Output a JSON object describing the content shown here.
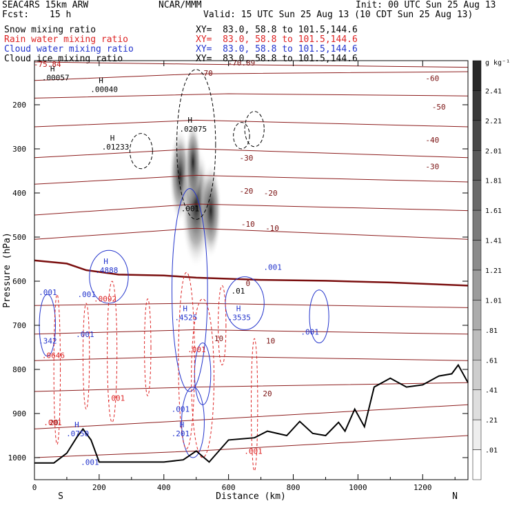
{
  "header": {
    "model": "SEAC4RS 15km ARW",
    "center": "NCAR/MMM",
    "init": "Init: 00 UTC Sun 25 Aug 13",
    "fcst_label": "Fcst:",
    "fcst_value": "15 h",
    "valid": "Valid: 15 UTC Sun 25 Aug 13 (10 CDT Sun 25 Aug 13)"
  },
  "fields": [
    {
      "label": "Snow mixing ratio",
      "xy": "XY=  83.0, 58.8 to 101.5,144.6",
      "color": "#000000"
    },
    {
      "label": "Rain water mixing ratio",
      "xy": "XY=  83.0, 58.8 to 101.5,144.6",
      "color": "#dd2222"
    },
    {
      "label": "Cloud water mixing ratio",
      "xy": "XY=  83.0, 58.8 to 101.5,144.6",
      "color": "#2233cc"
    },
    {
      "label": "Cloud ice mixing ratio",
      "xy": "XY=  83.0, 58.8 to 101.5,144.6",
      "color": "#000000"
    }
  ],
  "chart_data": {
    "type": "cross-section contour",
    "xlabel": "Distance (km)",
    "ylabel": "Pressure (hPa)",
    "x_ticks": [
      0,
      200,
      400,
      600,
      800,
      1000,
      1200
    ],
    "y_ticks": [
      200,
      300,
      400,
      500,
      600,
      700,
      800,
      900,
      1000
    ],
    "xlim": [
      0,
      1340
    ],
    "ylim": [
      100,
      1050
    ],
    "left_end": "S",
    "right_end": "N",
    "colorbar_unit": "g kg⁻¹",
    "colorbar_levels": [
      "2.41",
      "2.21",
      "2.01",
      "1.81",
      "1.61",
      "1.41",
      "1.21",
      "1.01",
      ".81",
      ".61",
      ".41",
      ".21",
      ".01"
    ],
    "temperature_labels": [
      {
        "label": "-75.84",
        "x": 40,
        "p": 108,
        "color": "#bb1111"
      },
      {
        "label": "-70.89",
        "x": 640,
        "p": 105,
        "color": "#7a1010"
      },
      {
        "label": "-70",
        "x": 530,
        "p": 128,
        "color": "#7a1010"
      },
      {
        "label": "-60",
        "x": 1230,
        "p": 140,
        "color": "#7a1010"
      },
      {
        "label": "-50",
        "x": 1250,
        "p": 205,
        "color": "#7a1010"
      },
      {
        "label": "-40",
        "x": 1230,
        "p": 280,
        "color": "#7a1010"
      },
      {
        "label": "-30",
        "x": 655,
        "p": 320,
        "color": "#7a1010"
      },
      {
        "label": "-30",
        "x": 1230,
        "p": 340,
        "color": "#7a1010"
      },
      {
        "label": "-20",
        "x": 655,
        "p": 395,
        "color": "#7a1010"
      },
      {
        "label": "-20",
        "x": 730,
        "p": 400,
        "color": "#7a1010"
      },
      {
        "label": "-10",
        "x": 660,
        "p": 470,
        "color": "#7a1010"
      },
      {
        "label": "-10",
        "x": 735,
        "p": 480,
        "color": "#7a1010"
      },
      {
        "label": "0",
        "x": 660,
        "p": 605,
        "color": "#7a1010"
      },
      {
        "label": "10",
        "x": 570,
        "p": 730,
        "color": "#7a1010"
      },
      {
        "label": "10",
        "x": 730,
        "p": 735,
        "color": "#7a1010"
      },
      {
        "label": "20",
        "x": 720,
        "p": 855,
        "color": "#7a1010"
      },
      {
        "label": "20",
        "x": 60,
        "p": 920,
        "color": "#7a1010"
      }
    ],
    "extrema_labels": [
      {
        "label": ".00057",
        "x": 70,
        "p": 138,
        "color": "#000000",
        "h": true
      },
      {
        "label": ".00040",
        "x": 220,
        "p": 165,
        "color": "#000000",
        "h": true
      },
      {
        "label": ".02075",
        "x": 495,
        "p": 255,
        "color": "#000000",
        "h": true
      },
      {
        "label": ".01233",
        "x": 255,
        "p": 295,
        "color": "#000000",
        "h": true
      },
      {
        "label": ".001",
        "x": 500,
        "p": 435,
        "color": "#000000",
        "h": false
      },
      {
        "label": ".4888",
        "x": 235,
        "p": 575,
        "color": "#2233cc",
        "h": true
      },
      {
        "label": ".001",
        "x": 60,
        "p": 625,
        "color": "#2233cc",
        "h": false
      },
      {
        "label": ".001",
        "x": 180,
        "p": 630,
        "color": "#2233cc",
        "h": false
      },
      {
        "label": ".0092",
        "x": 230,
        "p": 640,
        "color": "#dd2222",
        "h": false
      },
      {
        "label": ".4525",
        "x": 480,
        "p": 682,
        "color": "#2233cc",
        "h": true
      },
      {
        "label": ".3535",
        "x": 645,
        "p": 682,
        "color": "#2233cc",
        "h": true
      },
      {
        "label": ".001",
        "x": 755,
        "p": 568,
        "color": "#2233cc",
        "h": false
      },
      {
        "label": ".01",
        "x": 655,
        "p": 622,
        "color": "#000000",
        "h": false
      },
      {
        "label": ".001",
        "x": 870,
        "p": 715,
        "color": "#2233cc",
        "h": false
      },
      {
        "label": ".342",
        "x": 60,
        "p": 735,
        "color": "#2233cc",
        "h": false
      },
      {
        "label": ".001",
        "x": 175,
        "p": 720,
        "color": "#2233cc",
        "h": false
      },
      {
        "label": ".0646",
        "x": 70,
        "p": 768,
        "color": "#dd2222",
        "h": false
      },
      {
        "label": ".001",
        "x": 520,
        "p": 755,
        "color": "#dd2222",
        "h": false
      },
      {
        "label": ".001",
        "x": 270,
        "p": 865,
        "color": "#dd2222",
        "h": false
      },
      {
        "label": ".001",
        "x": 470,
        "p": 890,
        "color": "#2233cc",
        "h": false
      },
      {
        "label": ".001",
        "x": 75,
        "p": 920,
        "color": "#dd2222",
        "h": false
      },
      {
        "label": ".0750",
        "x": 145,
        "p": 945,
        "color": "#2233cc",
        "h": true
      },
      {
        "label": ".201",
        "x": 470,
        "p": 945,
        "color": "#2233cc",
        "h": true
      },
      {
        "label": ".001",
        "x": 695,
        "p": 985,
        "color": "#dd2222",
        "h": false
      },
      {
        "label": ".001",
        "x": 190,
        "p": 1010,
        "color": "#2233cc",
        "h": false
      }
    ],
    "zero_isotherm": [
      [
        0,
        553
      ],
      [
        100,
        560
      ],
      [
        160,
        575
      ],
      [
        260,
        585
      ],
      [
        400,
        587
      ],
      [
        500,
        592
      ],
      [
        700,
        597
      ],
      [
        900,
        599
      ],
      [
        1100,
        603
      ],
      [
        1340,
        610
      ]
    ],
    "isotherms": [
      [
        [
          0,
          103
        ],
        [
          500,
          108
        ],
        [
          1340,
          115
        ]
      ],
      [
        [
          0,
          145
        ],
        [
          500,
          130
        ],
        [
          1340,
          125
        ]
      ],
      [
        [
          0,
          185
        ],
        [
          600,
          175
        ],
        [
          1340,
          180
        ]
      ],
      [
        [
          0,
          250
        ],
        [
          500,
          235
        ],
        [
          1340,
          250
        ]
      ],
      [
        [
          0,
          320
        ],
        [
          500,
          300
        ],
        [
          1340,
          320
        ]
      ],
      [
        [
          0,
          380
        ],
        [
          500,
          360
        ],
        [
          1340,
          375
        ]
      ],
      [
        [
          0,
          450
        ],
        [
          500,
          425
        ],
        [
          1340,
          440
        ]
      ],
      [
        [
          0,
          505
        ],
        [
          500,
          480
        ],
        [
          1340,
          505
        ]
      ],
      [
        [
          0,
          655
        ],
        [
          500,
          650
        ],
        [
          1340,
          660
        ]
      ],
      [
        [
          0,
          720
        ],
        [
          500,
          710
        ],
        [
          1340,
          720
        ]
      ],
      [
        [
          0,
          780
        ],
        [
          500,
          770
        ],
        [
          1340,
          780
        ]
      ],
      [
        [
          0,
          850
        ],
        [
          500,
          840
        ],
        [
          1340,
          830
        ]
      ],
      [
        [
          0,
          935
        ],
        [
          500,
          915
        ],
        [
          1340,
          880
        ]
      ],
      [
        [
          0,
          1000
        ],
        [
          500,
          985
        ],
        [
          1340,
          950
        ]
      ]
    ],
    "terrain": [
      [
        0,
        1012
      ],
      [
        60,
        1012
      ],
      [
        100,
        990
      ],
      [
        130,
        955
      ],
      [
        150,
        935
      ],
      [
        175,
        960
      ],
      [
        200,
        1010
      ],
      [
        400,
        1010
      ],
      [
        460,
        1005
      ],
      [
        500,
        985
      ],
      [
        540,
        1010
      ],
      [
        600,
        960
      ],
      [
        680,
        955
      ],
      [
        720,
        940
      ],
      [
        780,
        950
      ],
      [
        820,
        918
      ],
      [
        860,
        945
      ],
      [
        900,
        950
      ],
      [
        940,
        920
      ],
      [
        960,
        940
      ],
      [
        990,
        890
      ],
      [
        1020,
        930
      ],
      [
        1050,
        840
      ],
      [
        1100,
        820
      ],
      [
        1150,
        840
      ],
      [
        1200,
        835
      ],
      [
        1250,
        815
      ],
      [
        1290,
        810
      ],
      [
        1310,
        790
      ],
      [
        1340,
        830
      ]
    ]
  }
}
